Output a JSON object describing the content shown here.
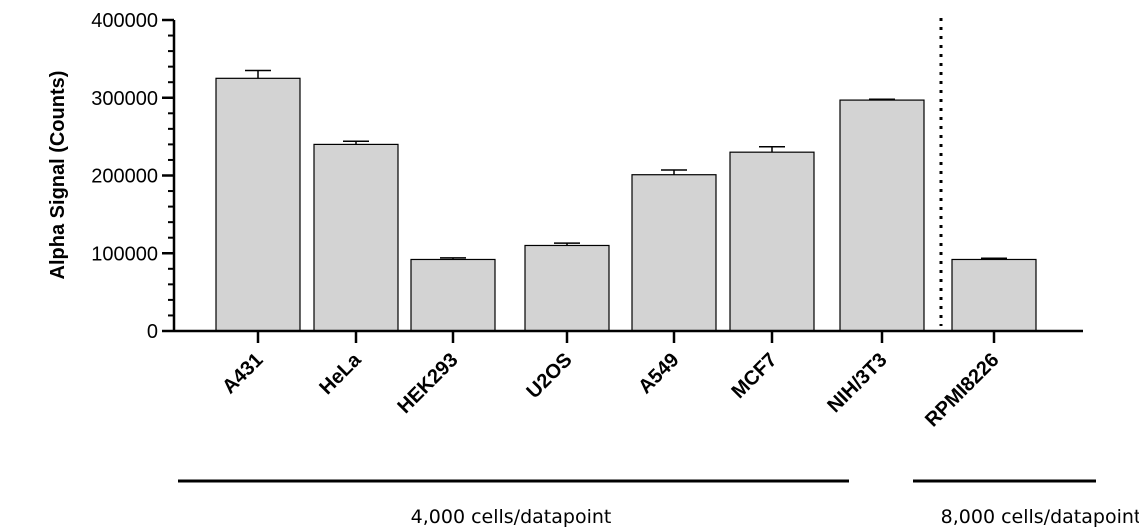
{
  "chart_data": {
    "type": "bar",
    "ylabel": "Alpha Signal (Counts)",
    "xlabel": "",
    "ylim": [
      0,
      400000
    ],
    "yticks": [
      0,
      100000,
      200000,
      300000,
      400000
    ],
    "ytick_labels": [
      "0",
      "100000",
      "200000",
      "300000",
      "400000"
    ],
    "categories": [
      "A431",
      "HeLa",
      "HEK293",
      "U2OS",
      "A549",
      "MCF7",
      "NIH/3T3",
      "RPMI8226"
    ],
    "values": [
      325000,
      240000,
      92000,
      110000,
      201000,
      230000,
      297000,
      92000
    ],
    "error": [
      10000,
      4000,
      2000,
      3000,
      6000,
      7000,
      1000,
      1500
    ],
    "bar_color": "#d3d3d3",
    "edge_color": "#000000",
    "divider": "dotted line between NIH/3T3 and RPMI8226",
    "groups": [
      {
        "label": "4,000 cells/datapoint",
        "categories": [
          "A431",
          "HeLa",
          "HEK293",
          "U2OS",
          "A549",
          "MCF7",
          "NIH/3T3"
        ]
      },
      {
        "label": "8,000 cells/datapoint",
        "categories": [
          "RPMI8226"
        ]
      }
    ]
  }
}
